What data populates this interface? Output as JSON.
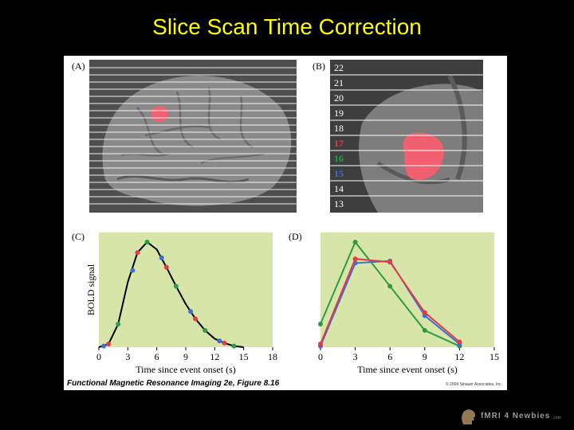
{
  "slide": {
    "title": "Slice Scan Time Correction"
  },
  "figure": {
    "panel_a_label": "(A)",
    "panel_b_label": "(B)",
    "panel_c_label": "(C)",
    "panel_d_label": "(D)",
    "slice_numbers": [
      "22",
      "21",
      "20",
      "19",
      "18",
      "17",
      "16",
      "15",
      "14",
      "13"
    ],
    "slice_colors": [
      "#ffffff",
      "#ffffff",
      "#ffffff",
      "#ffffff",
      "#ffffff",
      "#e23a4a",
      "#2f9a46",
      "#3c6fd1",
      "#ffffff",
      "#ffffff"
    ],
    "caption": "Functional Magnetic Resonance Imaging 2e, Figure 8.16",
    "copyright": "© 2009 Sinauer Associates, Inc."
  },
  "chart_data": [
    {
      "type": "line",
      "panel": "C",
      "xlabel": "Time since event onset (s)",
      "ylabel": "BOLD signal",
      "xlim": [
        0,
        18
      ],
      "xticks": [
        0,
        3,
        6,
        9,
        12,
        15,
        18
      ],
      "background": "#d7e6a8",
      "curve": {
        "color": "#000000",
        "x": [
          0,
          1,
          2,
          3,
          4,
          5,
          6,
          7,
          8,
          9,
          10,
          11,
          12,
          13,
          14,
          15
        ],
        "y": [
          0.0,
          0.03,
          0.22,
          0.62,
          0.9,
          1.0,
          0.93,
          0.76,
          0.58,
          0.41,
          0.27,
          0.16,
          0.08,
          0.04,
          0.01,
          0.0
        ]
      },
      "series": [
        {
          "name": "slice 16",
          "color": "#2f9a46",
          "x": [
            2,
            5,
            8,
            11,
            14
          ],
          "y": [
            0.22,
            1.0,
            0.58,
            0.16,
            0.01
          ]
        },
        {
          "name": "slice 15",
          "color": "#3c6fd1",
          "x": [
            0.5,
            3.5,
            6.5,
            9.5,
            12.5
          ],
          "y": [
            0.01,
            0.73,
            0.85,
            0.34,
            0.06
          ]
        },
        {
          "name": "slice 17",
          "color": "#e23a4a",
          "x": [
            1,
            4,
            7,
            10,
            13
          ],
          "y": [
            0.03,
            0.9,
            0.76,
            0.27,
            0.04
          ]
        }
      ]
    },
    {
      "type": "line",
      "panel": "D",
      "xlabel": "Time since event onset (s)",
      "ylabel": "",
      "xlim": [
        0,
        15
      ],
      "xticks": [
        0,
        3,
        6,
        9,
        12,
        15
      ],
      "background": "#d7e6a8",
      "series": [
        {
          "name": "slice 16",
          "color": "#2f9a46",
          "x": [
            0,
            3,
            6,
            9,
            12
          ],
          "y": [
            0.22,
            1.0,
            0.58,
            0.16,
            0.01
          ]
        },
        {
          "name": "slice 15",
          "color": "#3c6fd1",
          "x": [
            0,
            3,
            6,
            9,
            12
          ],
          "y": [
            0.01,
            0.8,
            0.82,
            0.3,
            0.03
          ]
        },
        {
          "name": "slice 17",
          "color": "#e23a4a",
          "x": [
            0,
            3,
            6,
            9,
            12
          ],
          "y": [
            0.03,
            0.84,
            0.81,
            0.33,
            0.05
          ]
        }
      ]
    }
  ],
  "footer": {
    "logo_text": "fMRI 4 Newbies",
    "logo_suffix": ".com",
    "logo_icon": "head-silhouette-icon"
  }
}
